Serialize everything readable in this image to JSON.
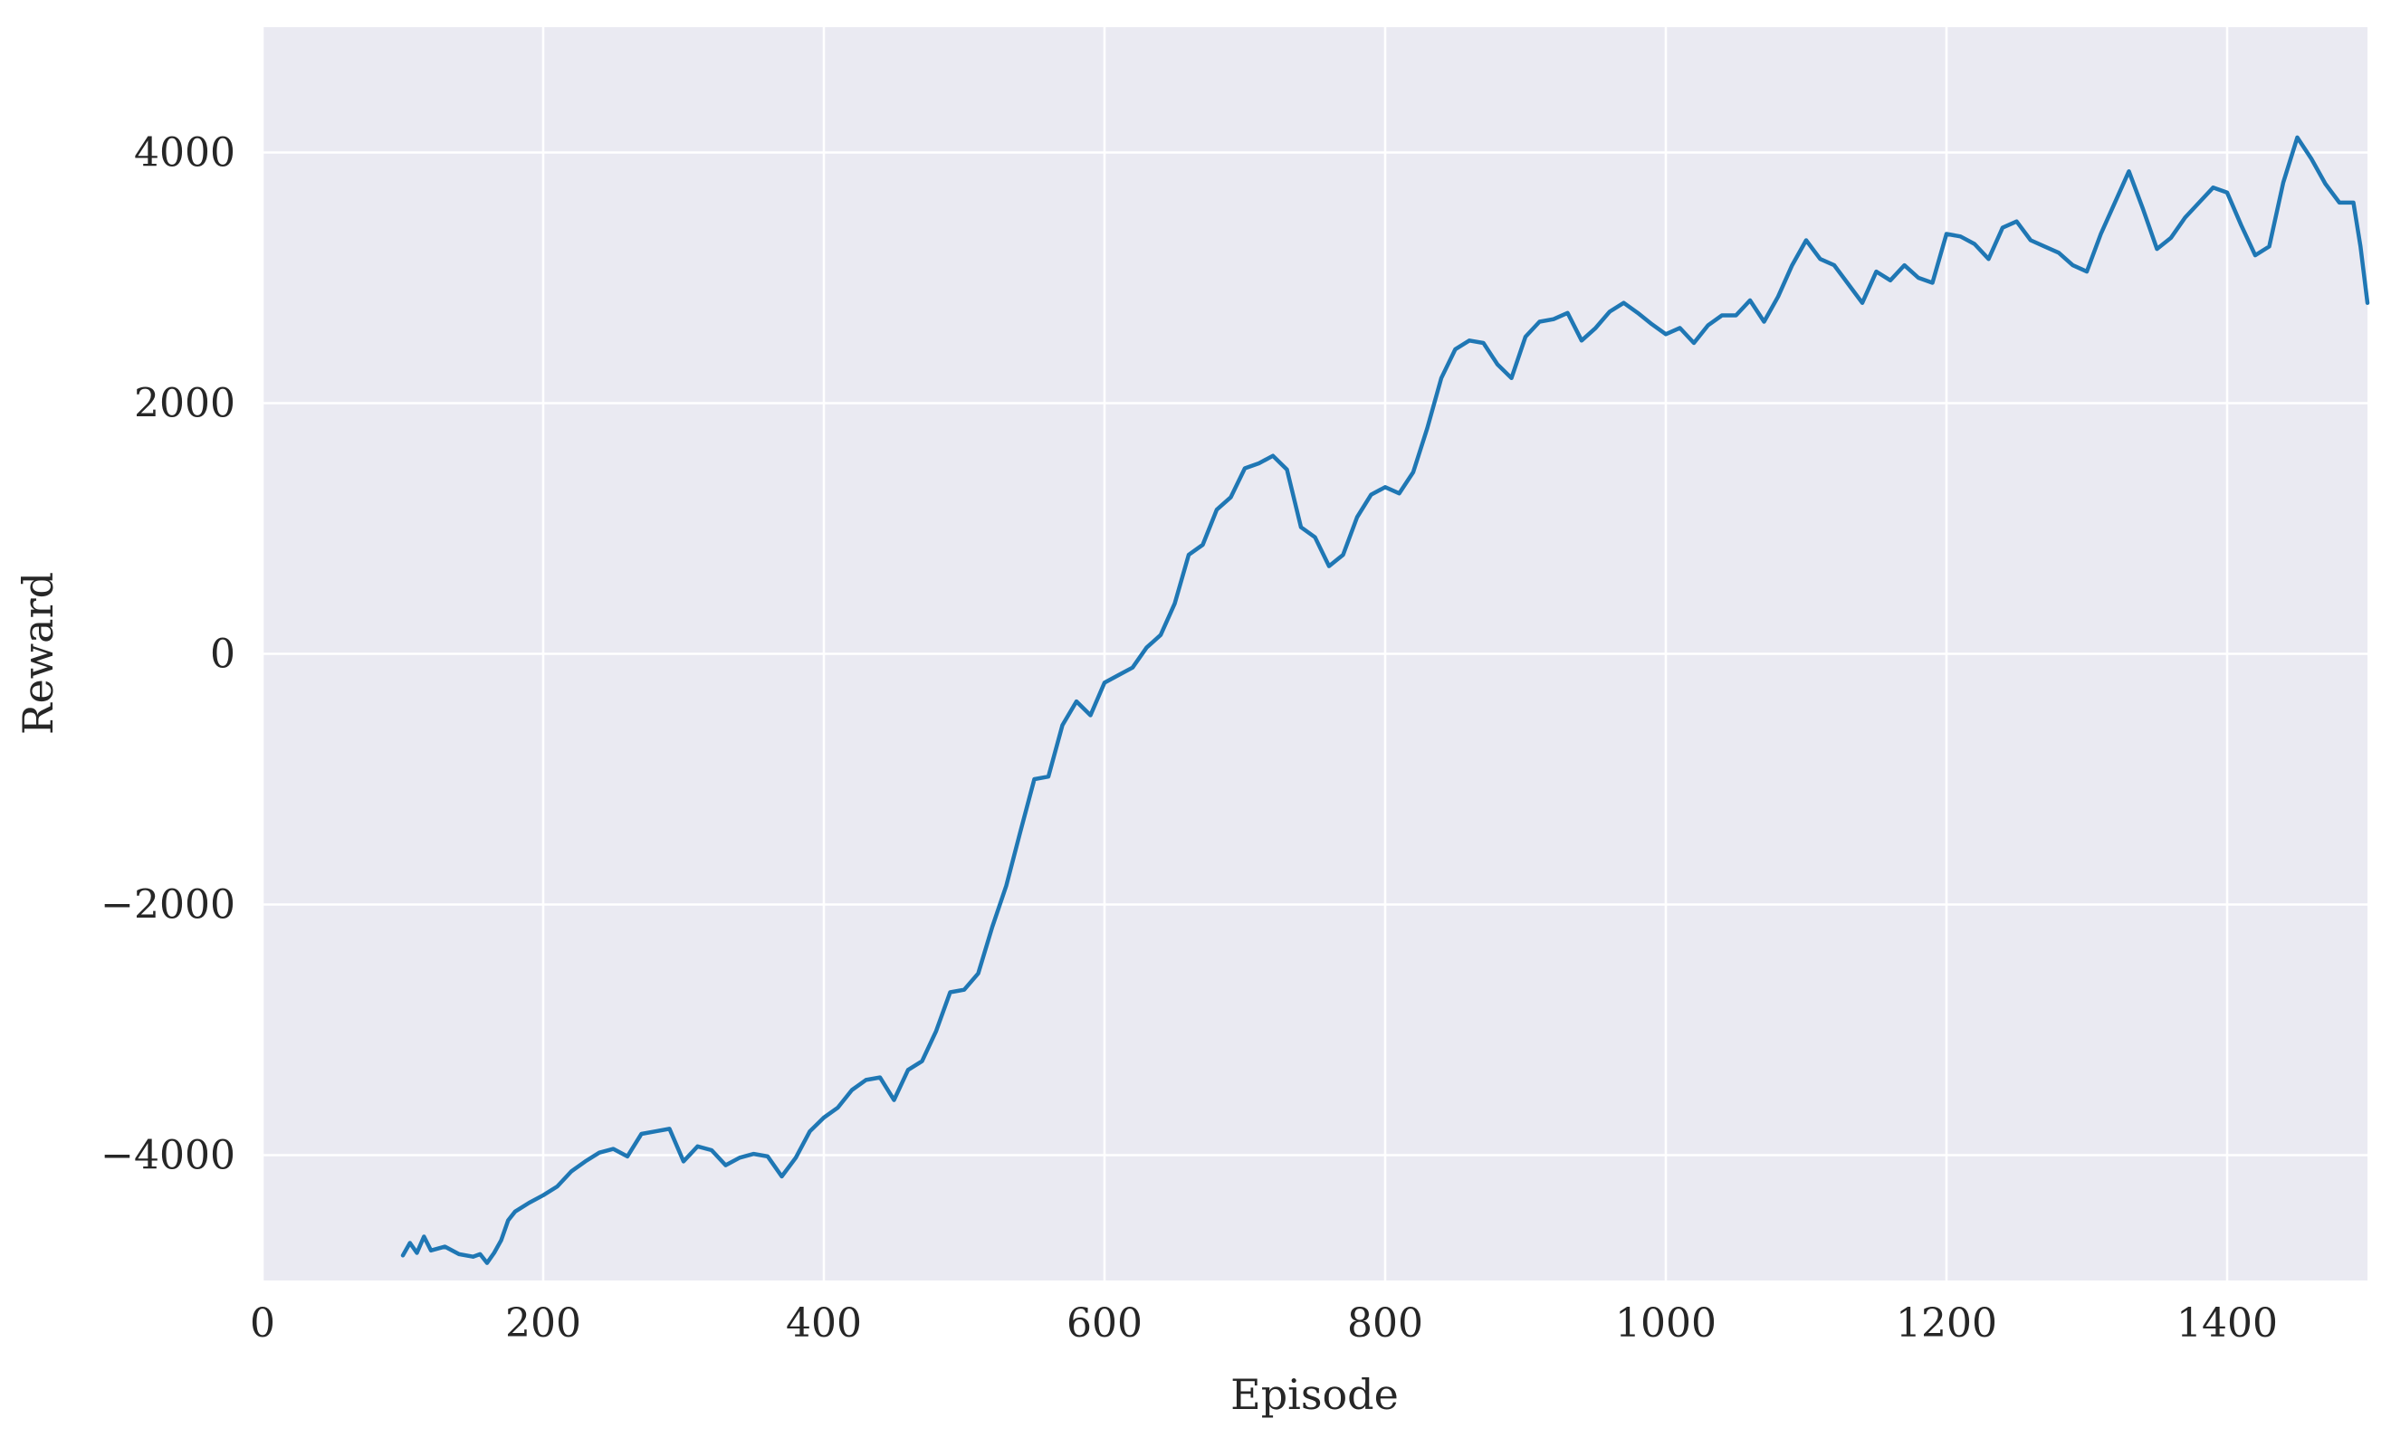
{
  "chart_data": {
    "type": "line",
    "title": "",
    "xlabel": "Episode",
    "ylabel": "Reward",
    "xlim": [
      0,
      1500
    ],
    "ylim": [
      -5000,
      5000
    ],
    "x_ticks": [
      0,
      200,
      400,
      600,
      800,
      1000,
      1200,
      1400
    ],
    "x_tick_labels": [
      "0",
      "200",
      "400",
      "600",
      "800",
      "1000",
      "1200",
      "1400"
    ],
    "y_ticks": [
      -4000,
      -2000,
      0,
      2000,
      4000
    ],
    "y_tick_labels": [
      "−4000",
      "−2000",
      "0",
      "2000",
      "4000"
    ],
    "grid": true,
    "colors": {
      "background": "#eaeaf2",
      "grid": "#ffffff",
      "line": "#1f77b4"
    },
    "series": [
      {
        "points": [
          [
            100,
            -4800
          ],
          [
            105,
            -4700
          ],
          [
            110,
            -4780
          ],
          [
            115,
            -4650
          ],
          [
            120,
            -4760
          ],
          [
            130,
            -4730
          ],
          [
            140,
            -4790
          ],
          [
            150,
            -4810
          ],
          [
            155,
            -4790
          ],
          [
            160,
            -4860
          ],
          [
            165,
            -4780
          ],
          [
            170,
            -4680
          ],
          [
            175,
            -4520
          ],
          [
            180,
            -4450
          ],
          [
            190,
            -4380
          ],
          [
            200,
            -4320
          ],
          [
            210,
            -4250
          ],
          [
            220,
            -4130
          ],
          [
            230,
            -4050
          ],
          [
            240,
            -3980
          ],
          [
            250,
            -3950
          ],
          [
            260,
            -4010
          ],
          [
            270,
            -3830
          ],
          [
            280,
            -3810
          ],
          [
            290,
            -3790
          ],
          [
            300,
            -4050
          ],
          [
            310,
            -3930
          ],
          [
            320,
            -3960
          ],
          [
            330,
            -4080
          ],
          [
            340,
            -4020
          ],
          [
            350,
            -3990
          ],
          [
            360,
            -4010
          ],
          [
            370,
            -4170
          ],
          [
            380,
            -4020
          ],
          [
            390,
            -3810
          ],
          [
            400,
            -3700
          ],
          [
            410,
            -3620
          ],
          [
            420,
            -3480
          ],
          [
            430,
            -3400
          ],
          [
            440,
            -3380
          ],
          [
            450,
            -3560
          ],
          [
            460,
            -3320
          ],
          [
            470,
            -3250
          ],
          [
            480,
            -3010
          ],
          [
            490,
            -2700
          ],
          [
            500,
            -2680
          ],
          [
            510,
            -2550
          ],
          [
            520,
            -2180
          ],
          [
            530,
            -1850
          ],
          [
            540,
            -1420
          ],
          [
            550,
            -1000
          ],
          [
            560,
            -980
          ],
          [
            570,
            -570
          ],
          [
            580,
            -380
          ],
          [
            590,
            -490
          ],
          [
            600,
            -230
          ],
          [
            610,
            -170
          ],
          [
            620,
            -110
          ],
          [
            630,
            50
          ],
          [
            640,
            150
          ],
          [
            650,
            400
          ],
          [
            660,
            790
          ],
          [
            670,
            870
          ],
          [
            680,
            1150
          ],
          [
            690,
            1250
          ],
          [
            700,
            1480
          ],
          [
            710,
            1520
          ],
          [
            720,
            1580
          ],
          [
            730,
            1470
          ],
          [
            740,
            1010
          ],
          [
            750,
            930
          ],
          [
            760,
            700
          ],
          [
            770,
            790
          ],
          [
            780,
            1090
          ],
          [
            790,
            1270
          ],
          [
            800,
            1330
          ],
          [
            810,
            1280
          ],
          [
            820,
            1450
          ],
          [
            830,
            1800
          ],
          [
            840,
            2200
          ],
          [
            850,
            2430
          ],
          [
            860,
            2500
          ],
          [
            870,
            2480
          ],
          [
            880,
            2310
          ],
          [
            890,
            2200
          ],
          [
            900,
            2530
          ],
          [
            910,
            2650
          ],
          [
            920,
            2670
          ],
          [
            930,
            2720
          ],
          [
            940,
            2500
          ],
          [
            950,
            2600
          ],
          [
            960,
            2730
          ],
          [
            970,
            2800
          ],
          [
            980,
            2720
          ],
          [
            990,
            2630
          ],
          [
            1000,
            2550
          ],
          [
            1010,
            2600
          ],
          [
            1020,
            2480
          ],
          [
            1030,
            2620
          ],
          [
            1040,
            2700
          ],
          [
            1050,
            2700
          ],
          [
            1060,
            2820
          ],
          [
            1070,
            2650
          ],
          [
            1080,
            2850
          ],
          [
            1090,
            3100
          ],
          [
            1100,
            3300
          ],
          [
            1110,
            3150
          ],
          [
            1120,
            3100
          ],
          [
            1130,
            2950
          ],
          [
            1140,
            2800
          ],
          [
            1150,
            3050
          ],
          [
            1160,
            2980
          ],
          [
            1170,
            3100
          ],
          [
            1180,
            3000
          ],
          [
            1190,
            2960
          ],
          [
            1200,
            3350
          ],
          [
            1210,
            3330
          ],
          [
            1220,
            3270
          ],
          [
            1230,
            3150
          ],
          [
            1240,
            3400
          ],
          [
            1250,
            3450
          ],
          [
            1260,
            3300
          ],
          [
            1270,
            3250
          ],
          [
            1280,
            3200
          ],
          [
            1290,
            3100
          ],
          [
            1300,
            3050
          ],
          [
            1310,
            3350
          ],
          [
            1320,
            3600
          ],
          [
            1330,
            3850
          ],
          [
            1340,
            3550
          ],
          [
            1350,
            3230
          ],
          [
            1360,
            3320
          ],
          [
            1370,
            3480
          ],
          [
            1380,
            3600
          ],
          [
            1390,
            3720
          ],
          [
            1400,
            3680
          ],
          [
            1410,
            3420
          ],
          [
            1420,
            3180
          ],
          [
            1430,
            3250
          ],
          [
            1440,
            3760
          ],
          [
            1450,
            4120
          ],
          [
            1460,
            3950
          ],
          [
            1470,
            3750
          ],
          [
            1480,
            3600
          ],
          [
            1490,
            3600
          ],
          [
            1495,
            3250
          ],
          [
            1500,
            2800
          ]
        ]
      }
    ]
  }
}
